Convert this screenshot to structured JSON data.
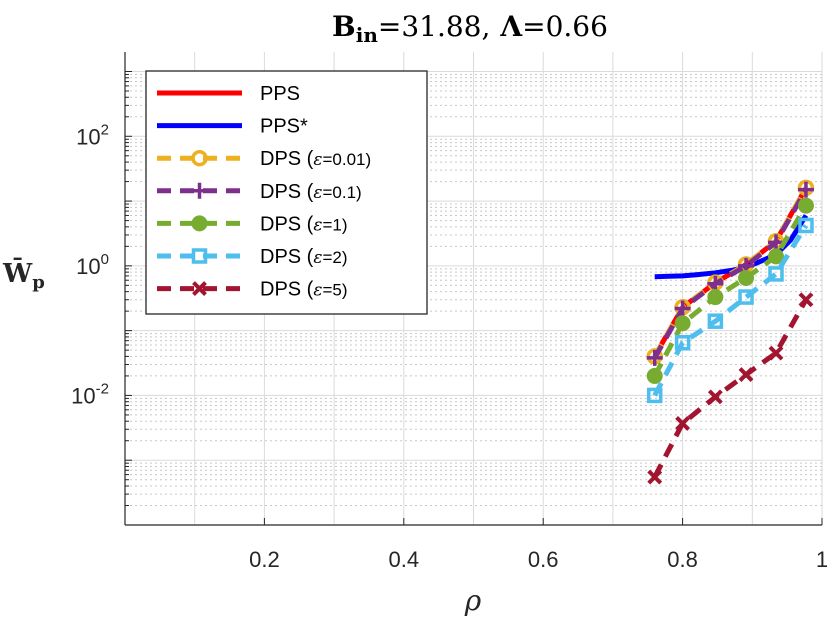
{
  "chart_data": {
    "type": "line",
    "title": {
      "b_symbol": "B",
      "b_subscript": "in",
      "b_value": "=31.88,",
      "lambda_symbol": "Λ",
      "lambda_value": "=0.66"
    },
    "xlabel": "ρ",
    "ylabel": {
      "symbol": "W̄",
      "subscript": "p"
    },
    "x_scale": "linear",
    "y_scale": "log",
    "xlim": [
      0,
      1
    ],
    "ylim": [
      0.0001,
      2000
    ],
    "x_ticks": [
      {
        "value": 0.2,
        "label": "0.2"
      },
      {
        "value": 0.4,
        "label": "0.4"
      },
      {
        "value": 0.6,
        "label": "0.6"
      },
      {
        "value": 0.8,
        "label": "0.8"
      },
      {
        "value": 1.0,
        "label": "1"
      }
    ],
    "y_ticks": [
      {
        "value": 100,
        "base": "10",
        "exp": "2"
      },
      {
        "value": 1,
        "base": "10",
        "exp": "0"
      },
      {
        "value": 0.01,
        "base": "10",
        "exp": "-2"
      }
    ],
    "grid": true,
    "legend_position": "top-left",
    "series": [
      {
        "name": "PPS",
        "color": "#ff0000",
        "style": "solid",
        "marker": "none",
        "x": [
          0.76,
          0.8,
          0.847,
          0.891,
          0.934,
          0.977
        ],
        "y": [
          0.04,
          0.23,
          0.55,
          1.05,
          2.4,
          16
        ]
      },
      {
        "name": "PPS*",
        "color": "#0000ff",
        "style": "solid",
        "marker": "none",
        "x": [
          0.76,
          0.78,
          0.8,
          0.82,
          0.847,
          0.87,
          0.891,
          0.91,
          0.934,
          0.955,
          0.977
        ],
        "y": [
          0.68,
          0.69,
          0.7,
          0.73,
          0.78,
          0.85,
          0.95,
          1.15,
          1.5,
          2.5,
          6
        ]
      },
      {
        "name": "DPS (ε=0.01)",
        "name_prefix": "DPS (",
        "name_epsilon": "ε",
        "name_suffix": "=0.01)",
        "color": "#edb120",
        "style": "dashed",
        "marker": "circle",
        "x": [
          0.76,
          0.8,
          0.847,
          0.891,
          0.934,
          0.977
        ],
        "y": [
          0.04,
          0.23,
          0.55,
          1.05,
          2.4,
          16
        ]
      },
      {
        "name": "DPS (ε=0.1)",
        "name_prefix": "DPS (",
        "name_epsilon": "ε",
        "name_suffix": "=0.1)",
        "color": "#7e2f8e",
        "style": "dashed",
        "marker": "plus",
        "x": [
          0.76,
          0.8,
          0.847,
          0.891,
          0.934,
          0.977
        ],
        "y": [
          0.038,
          0.22,
          0.53,
          1.0,
          2.3,
          15
        ]
      },
      {
        "name": "DPS (ε=1)",
        "name_prefix": "DPS (",
        "name_epsilon": "ε",
        "name_suffix": "=1)",
        "color": "#77ac30",
        "style": "dashed",
        "marker": "diamond",
        "x": [
          0.76,
          0.8,
          0.847,
          0.891,
          0.934,
          0.977
        ],
        "y": [
          0.02,
          0.13,
          0.33,
          0.65,
          1.4,
          8.5
        ]
      },
      {
        "name": "DPS (ε=2)",
        "name_prefix": "DPS (",
        "name_epsilon": "ε",
        "name_suffix": "=2)",
        "color": "#4dbeee",
        "style": "dashed",
        "marker": "square",
        "x": [
          0.76,
          0.8,
          0.847,
          0.891,
          0.934,
          0.977
        ],
        "y": [
          0.01,
          0.065,
          0.14,
          0.33,
          0.75,
          4.2
        ]
      },
      {
        "name": "DPS (ε=5)",
        "name_prefix": "DPS (",
        "name_epsilon": "ε",
        "name_suffix": "=5)",
        "color": "#a2142f",
        "style": "dashed",
        "marker": "x",
        "x": [
          0.76,
          0.8,
          0.847,
          0.891,
          0.934,
          0.977
        ],
        "y": [
          0.00055,
          0.0037,
          0.0095,
          0.021,
          0.045,
          0.3
        ]
      }
    ]
  }
}
